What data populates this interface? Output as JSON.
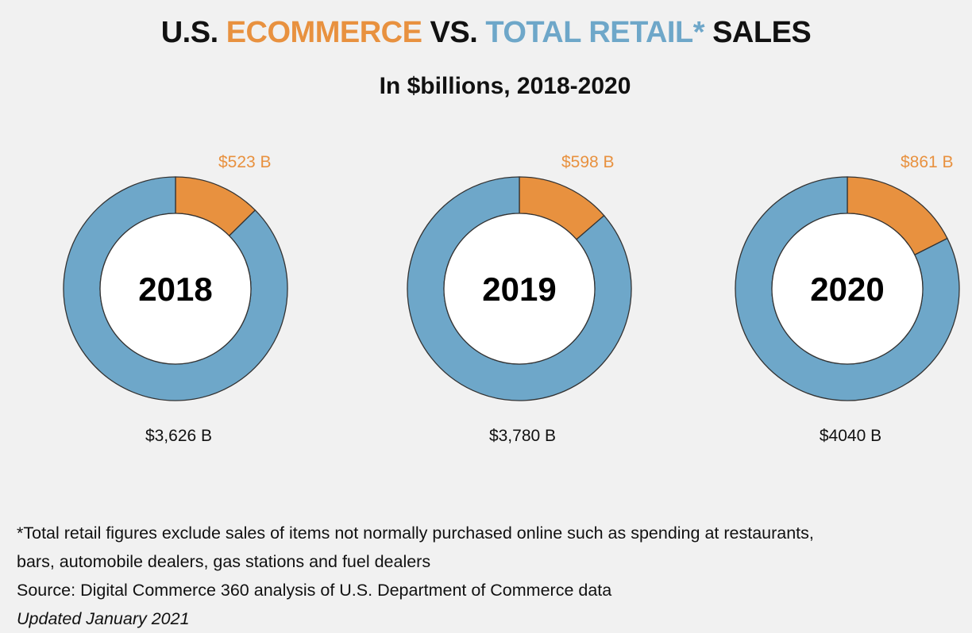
{
  "header": {
    "title_prefix": "U.S.",
    "title_ecommerce": "ECOMMERCE",
    "title_vs": "VS.",
    "title_total_retail": "TOTAL RETAIL*",
    "title_sales": "SALES",
    "subtitle": "In $billions, 2018-2020"
  },
  "colors": {
    "ecommerce": "#e8913f",
    "total_retail": "#6ea7c9",
    "outline": "#333333",
    "hole": "#ffffff"
  },
  "chart_data": [
    {
      "type": "pie",
      "center_label": "2018",
      "slices": [
        {
          "name": "ECOMMERCE",
          "value": 523,
          "label": "$523 B"
        },
        {
          "name": "TOTAL RETAIL*",
          "value": 3626,
          "label": "$3,626 B"
        }
      ]
    },
    {
      "type": "pie",
      "center_label": "2019",
      "slices": [
        {
          "name": "ECOMMERCE",
          "value": 598,
          "label": "$598 B"
        },
        {
          "name": "TOTAL RETAIL*",
          "value": 3780,
          "label": "$3,780 B"
        }
      ]
    },
    {
      "type": "pie",
      "center_label": "2020",
      "slices": [
        {
          "name": "ECOMMERCE",
          "value": 861,
          "label": "$861 B"
        },
        {
          "name": "TOTAL RETAIL*",
          "value": 4040,
          "label": "$4040 B"
        }
      ]
    }
  ],
  "footnotes": {
    "line1": "*Total retail figures exclude sales of items not normally purchased online such as spending at restaurants,",
    "line2": "bars, automobile dealers, gas stations and fuel dealers",
    "source": "Source: Digital Commerce 360 analysis of U.S. Department of Commerce data",
    "updated": "Updated January 2021"
  }
}
